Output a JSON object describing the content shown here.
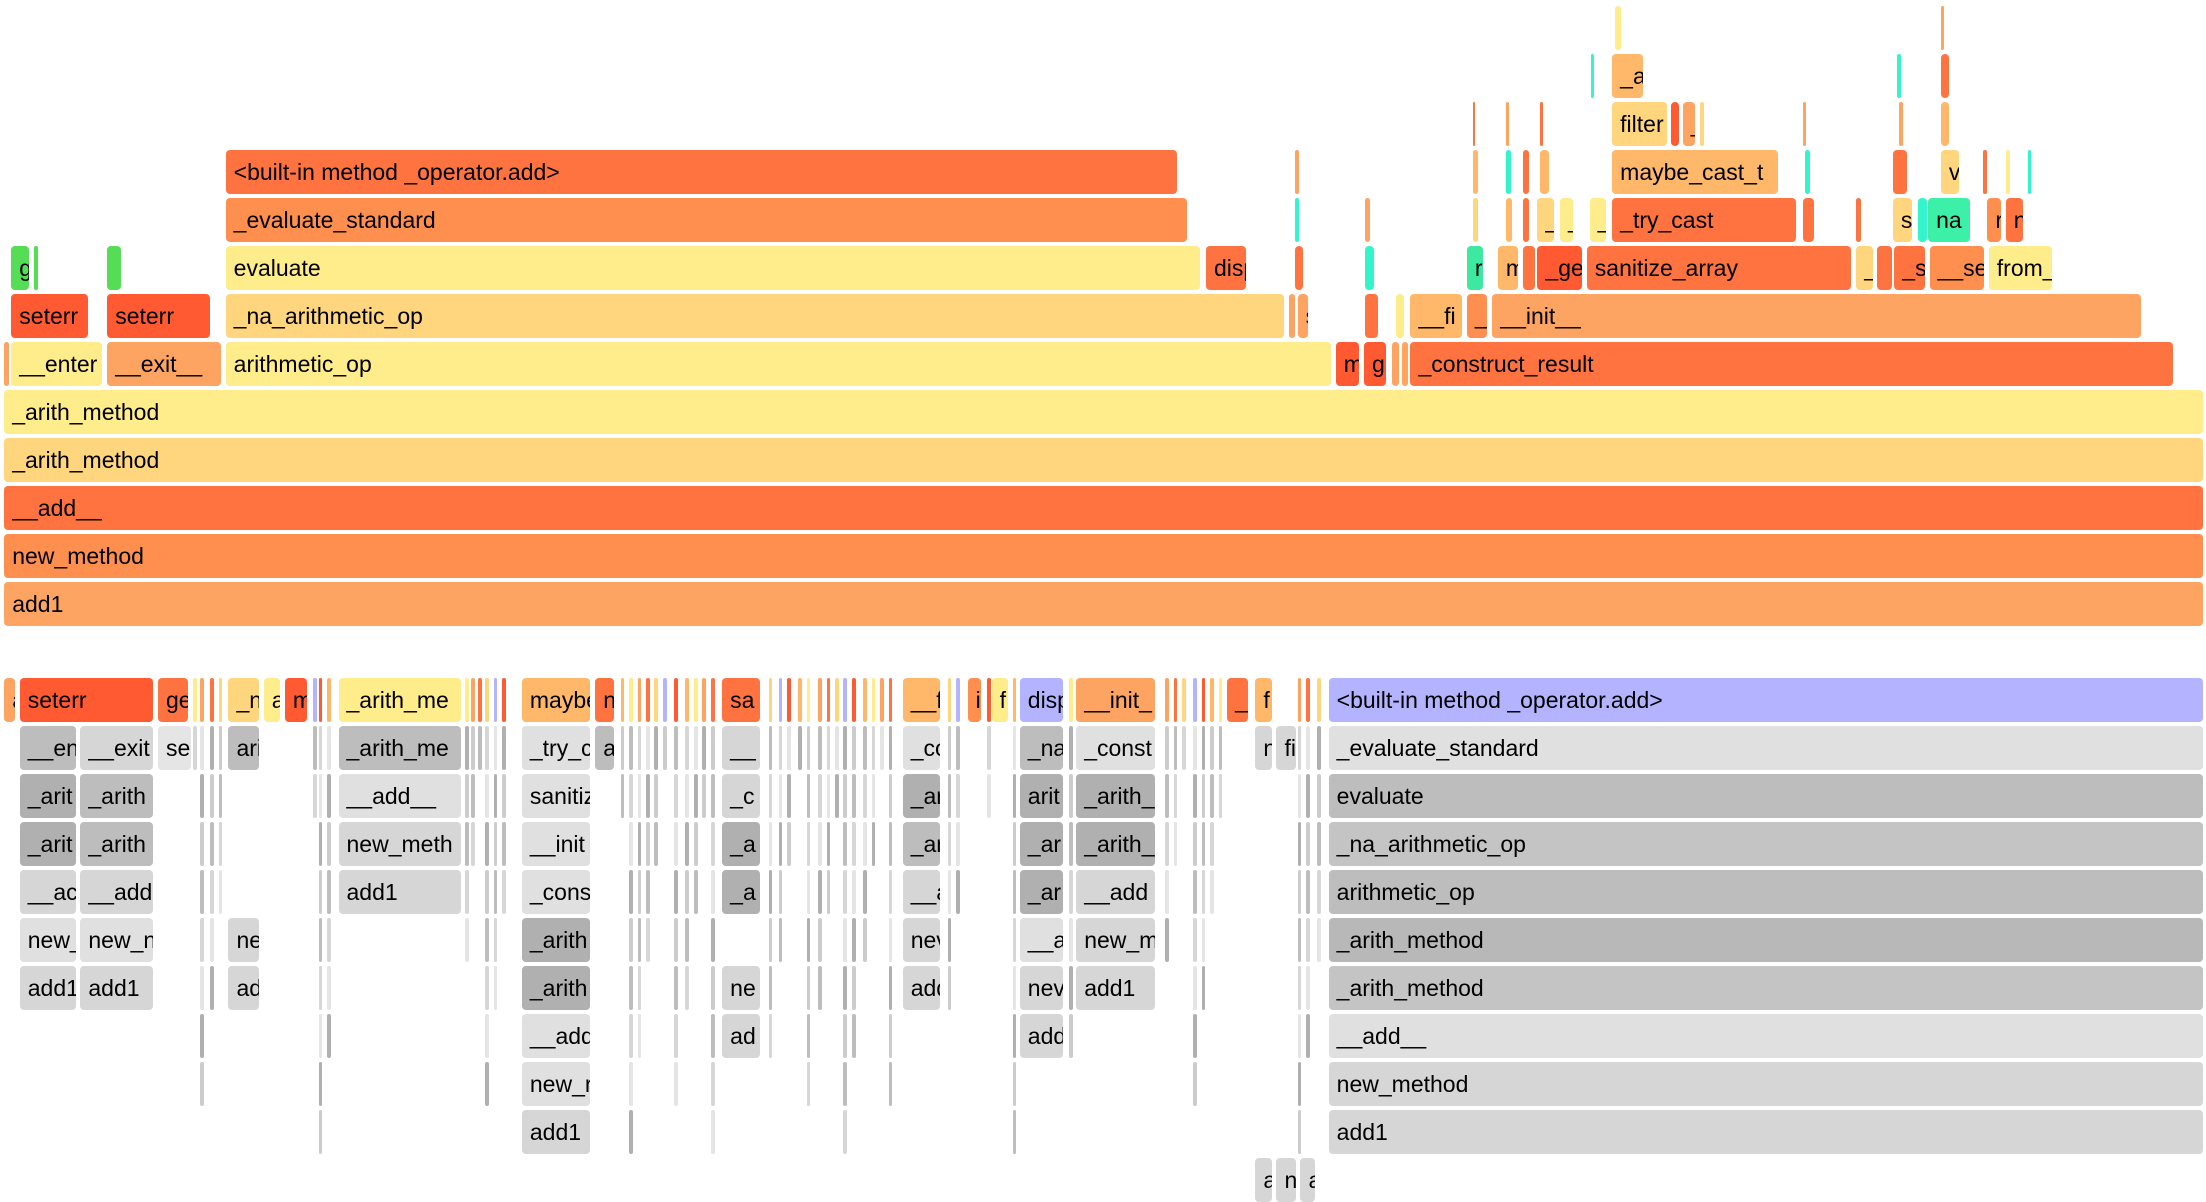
{
  "top_graph": {
    "frames": [
      {
        "label": "add1",
        "color": "#fea462"
      },
      {
        "label": "new_method",
        "color": "#ff8f4e"
      },
      {
        "label": "__add__",
        "color": "#ff7340"
      },
      {
        "label": "_arith_method",
        "color": "#ffd67d"
      },
      {
        "label": "_arith_method",
        "color": "#ffec8a"
      },
      {
        "label": "__enter",
        "color": "#ffec8a"
      },
      {
        "label": "__exit__",
        "color": "#fea462"
      },
      {
        "label": "arithmetic_op",
        "color": "#ffec8a"
      },
      {
        "label": "m",
        "color": "#ff5a32"
      },
      {
        "label": "g",
        "color": "#ff5a32"
      },
      {
        "label": "_construct_result",
        "color": "#ff7340"
      },
      {
        "label": "seterr",
        "color": "#ff5a32"
      },
      {
        "label": "seterr",
        "color": "#ff5a32"
      },
      {
        "label": "_na_arithmetic_op",
        "color": "#ffd67d"
      },
      {
        "label": "s",
        "color": "#fea462"
      },
      {
        "label": "__fi",
        "color": "#ffb86a"
      },
      {
        "label": "_",
        "color": "#ff8f4e"
      },
      {
        "label": "__init__",
        "color": "#fea462"
      },
      {
        "label": "g",
        "color": "#55dd55"
      },
      {
        "label": "evaluate",
        "color": "#ffec8a"
      },
      {
        "label": "disp",
        "color": "#ff7340"
      },
      {
        "label": "r",
        "color": "#3de8a0"
      },
      {
        "label": "m",
        "color": "#ffb86a"
      },
      {
        "label": "_ge",
        "color": "#ff5a32"
      },
      {
        "label": "sanitize_array",
        "color": "#ff7340"
      },
      {
        "label": "_",
        "color": "#ffd67d"
      },
      {
        "label": "_s",
        "color": "#ff7340"
      },
      {
        "label": "__se",
        "color": "#ff8f4e"
      },
      {
        "label": "from_",
        "color": "#ffec8a"
      },
      {
        "label": "_evaluate_standard",
        "color": "#ff8f4e"
      },
      {
        "label": "_",
        "color": "#ffd67d"
      },
      {
        "label": "_",
        "color": "#ffec8a"
      },
      {
        "label": "_",
        "color": "#ffec8a"
      },
      {
        "label": "_try_cast",
        "color": "#ff7340"
      },
      {
        "label": "s",
        "color": "#ffd67d"
      },
      {
        "label": "na",
        "color": "#3df0a8"
      },
      {
        "label": "r",
        "color": "#ff8f4e"
      },
      {
        "label": "n",
        "color": "#ff7340"
      },
      {
        "label": "<built-in method _operator.add>",
        "color": "#ff7340"
      },
      {
        "label": "maybe_cast_t",
        "color": "#ffb86a"
      },
      {
        "label": "v",
        "color": "#ffd67d"
      },
      {
        "label": "filter",
        "color": "#ffd67d"
      },
      {
        "label": "_",
        "color": "#fea462"
      },
      {
        "label": "_a",
        "color": "#ffb86a"
      }
    ]
  },
  "bottom_graph": {
    "frames": [
      {
        "label": "a",
        "color": "#fea462"
      },
      {
        "label": "seterr",
        "color": "#ff5a32"
      },
      {
        "label": "ge",
        "color": "#ff7340"
      },
      {
        "label": "_n",
        "color": "#ffd67d"
      },
      {
        "label": "a",
        "color": "#ffec8a"
      },
      {
        "label": "m",
        "color": "#ff5a32"
      },
      {
        "label": "_arith_me",
        "color": "#ffec8a"
      },
      {
        "label": "maybe",
        "color": "#ffb86a"
      },
      {
        "label": "n",
        "color": "#ff7340"
      },
      {
        "label": "sa",
        "color": "#ff7340"
      },
      {
        "label": "__f",
        "color": "#ffb86a"
      },
      {
        "label": "i",
        "color": "#ff8f4e"
      },
      {
        "label": "f",
        "color": "#ffec8a"
      },
      {
        "label": "disp",
        "color": "#b3b3ff"
      },
      {
        "label": "__init_",
        "color": "#fea462"
      },
      {
        "label": "_",
        "color": "#ff7340"
      },
      {
        "label": "f",
        "color": "#ffb86a"
      },
      {
        "label": "<built-in method _operator.add>",
        "color": "#b3b3ff"
      },
      {
        "label": "__en",
        "color": "#bdbdbd"
      },
      {
        "label": "__exit",
        "color": "#d6d6d6"
      },
      {
        "label": "se",
        "color": "#e5e5e5"
      },
      {
        "label": "ari",
        "color": "#bdbdbd"
      },
      {
        "label": "_arith_me",
        "color": "#bdbdbd"
      },
      {
        "label": "_try_c",
        "color": "#e0e0e0"
      },
      {
        "label": "a",
        "color": "#bdbdbd"
      },
      {
        "label": "__",
        "color": "#d6d6d6"
      },
      {
        "label": "_co",
        "color": "#e0e0e0"
      },
      {
        "label": "_na",
        "color": "#bdbdbd"
      },
      {
        "label": "_const",
        "color": "#e0e0e0"
      },
      {
        "label": "n",
        "color": "#d6d6d6"
      },
      {
        "label": "fi",
        "color": "#d6d6d6"
      },
      {
        "label": "_evaluate_standard",
        "color": "#e0e0e0"
      },
      {
        "label": "_arit",
        "color": "#b0b0b0"
      },
      {
        "label": "_arith",
        "color": "#bdbdbd"
      },
      {
        "label": "__add__",
        "color": "#e0e0e0"
      },
      {
        "label": "sanitiz",
        "color": "#e0e0e0"
      },
      {
        "label": "_c",
        "color": "#d6d6d6"
      },
      {
        "label": "_ar",
        "color": "#b0b0b0"
      },
      {
        "label": "arit",
        "color": "#b0b0b0"
      },
      {
        "label": "_arith_",
        "color": "#b0b0b0"
      },
      {
        "label": "evaluate",
        "color": "#bdbdbd"
      },
      {
        "label": "_arit",
        "color": "#b0b0b0"
      },
      {
        "label": "_arith",
        "color": "#bdbdbd"
      },
      {
        "label": "new_meth",
        "color": "#d6d6d6"
      },
      {
        "label": "__init",
        "color": "#e0e0e0"
      },
      {
        "label": "_a",
        "color": "#b0b0b0"
      },
      {
        "label": "_ar",
        "color": "#bdbdbd"
      },
      {
        "label": "_ar",
        "color": "#b0b0b0"
      },
      {
        "label": "_arith_",
        "color": "#b0b0b0"
      },
      {
        "label": "_na_arithmetic_op",
        "color": "#c4c4c4"
      },
      {
        "label": "__ac",
        "color": "#d6d6d6"
      },
      {
        "label": "__add",
        "color": "#d6d6d6"
      },
      {
        "label": "add1",
        "color": "#d6d6d6"
      },
      {
        "label": "_cons",
        "color": "#e0e0e0"
      },
      {
        "label": "_a",
        "color": "#b0b0b0"
      },
      {
        "label": "__a",
        "color": "#d6d6d6"
      },
      {
        "label": "_ar",
        "color": "#b0b0b0"
      },
      {
        "label": "__add",
        "color": "#d6d6d6"
      },
      {
        "label": "arithmetic_op",
        "color": "#bdbdbd"
      },
      {
        "label": "new_",
        "color": "#e0e0e0"
      },
      {
        "label": "new_n",
        "color": "#e0e0e0"
      },
      {
        "label": "ne",
        "color": "#d6d6d6"
      },
      {
        "label": "_arith",
        "color": "#b0b0b0"
      },
      {
        "label": "nev",
        "color": "#d6d6d6"
      },
      {
        "label": "__a",
        "color": "#e0e0e0"
      },
      {
        "label": "new_m",
        "color": "#d6d6d6"
      },
      {
        "label": "_arith_method",
        "color": "#b8b8b8"
      },
      {
        "label": "add1",
        "color": "#d6d6d6"
      },
      {
        "label": "add1",
        "color": "#d6d6d6"
      },
      {
        "label": "ad",
        "color": "#d6d6d6"
      },
      {
        "label": "_arith",
        "color": "#b0b0b0"
      },
      {
        "label": "ne",
        "color": "#d6d6d6"
      },
      {
        "label": "add",
        "color": "#d6d6d6"
      },
      {
        "label": "nev",
        "color": "#d6d6d6"
      },
      {
        "label": "add1",
        "color": "#d6d6d6"
      },
      {
        "label": "_arith_method",
        "color": "#c4c4c4"
      },
      {
        "label": "__add",
        "color": "#e0e0e0"
      },
      {
        "label": "ad",
        "color": "#d6d6d6"
      },
      {
        "label": "add",
        "color": "#d6d6d6"
      },
      {
        "label": "__add__",
        "color": "#e0e0e0"
      },
      {
        "label": "new_r",
        "color": "#e0e0e0"
      },
      {
        "label": "new_method",
        "color": "#d6d6d6"
      },
      {
        "label": "add1",
        "color": "#d6d6d6"
      },
      {
        "label": "add1",
        "color": "#d6d6d6"
      },
      {
        "label": "a",
        "color": "#d6d6d6"
      },
      {
        "label": "n",
        "color": "#d6d6d6"
      },
      {
        "label": "a",
        "color": "#d6d6d6"
      }
    ]
  }
}
